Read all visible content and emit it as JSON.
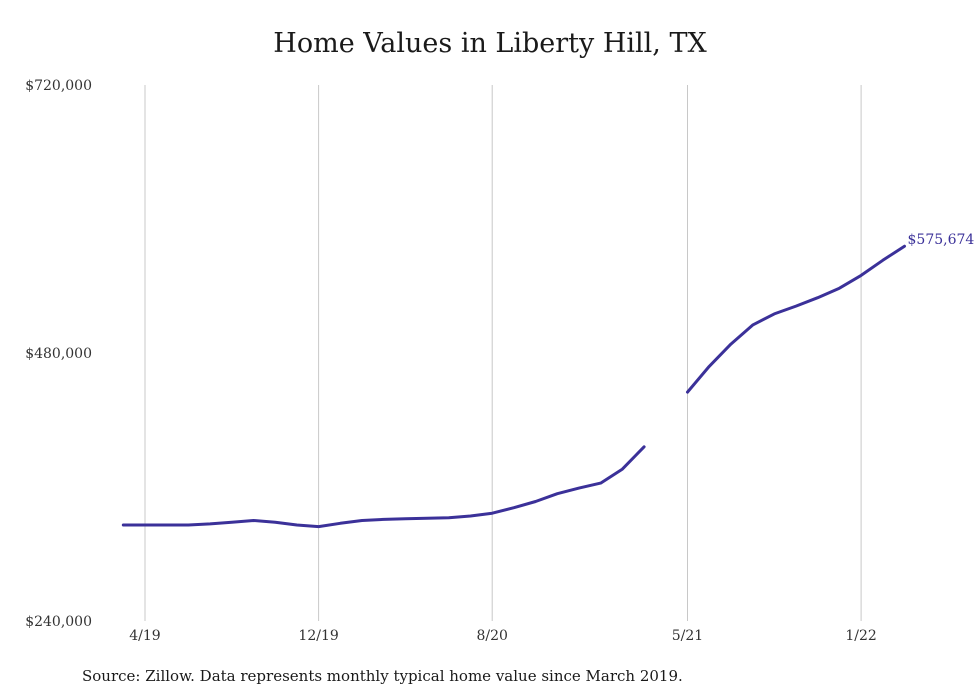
{
  "chart_data": {
    "type": "line",
    "title": "Home Values in Liberty Hill, TX",
    "xlabel": "",
    "ylabel": "",
    "source": "Source: Zillow. Data represents monthly typical home value since March 2019.",
    "ylim": [
      240000,
      720000
    ],
    "y_ticks": [
      240000,
      480000,
      720000
    ],
    "y_tick_labels": [
      "$240,000",
      "$480,000",
      "$720,000"
    ],
    "x_ticks": [
      "2019-04",
      "2019-12",
      "2020-08",
      "2021-05",
      "2022-01"
    ],
    "x_tick_labels": [
      "4/19",
      "12/19",
      "8/20",
      "5/21",
      "1/22"
    ],
    "grid": "vertical",
    "line_color": "#3b3199",
    "end_label": "$575,674",
    "series": [
      {
        "segments": [
          [
            {
              "x": "2019-03",
              "y": 326000
            },
            {
              "x": "2019-04",
              "y": 326000
            },
            {
              "x": "2019-05",
              "y": 326000
            },
            {
              "x": "2019-06",
              "y": 326000
            },
            {
              "x": "2019-07",
              "y": 327000
            },
            {
              "x": "2019-08",
              "y": 328500
            },
            {
              "x": "2019-09",
              "y": 330000
            },
            {
              "x": "2019-10",
              "y": 328500
            },
            {
              "x": "2019-11",
              "y": 326000
            },
            {
              "x": "2019-12",
              "y": 324500
            },
            {
              "x": "2020-01",
              "y": 327500
            },
            {
              "x": "2020-02",
              "y": 330000
            },
            {
              "x": "2020-03",
              "y": 331000
            },
            {
              "x": "2020-04",
              "y": 331500
            },
            {
              "x": "2020-05",
              "y": 332000
            },
            {
              "x": "2020-06",
              "y": 332500
            },
            {
              "x": "2020-07",
              "y": 334000
            },
            {
              "x": "2020-08",
              "y": 336500
            },
            {
              "x": "2020-09",
              "y": 341500
            },
            {
              "x": "2020-10",
              "y": 347000
            },
            {
              "x": "2020-11",
              "y": 354000
            },
            {
              "x": "2020-12",
              "y": 359000
            },
            {
              "x": "2021-01",
              "y": 363500
            },
            {
              "x": "2021-02",
              "y": 376000
            },
            {
              "x": "2021-03",
              "y": 396000
            }
          ],
          [
            {
              "x": "2021-05",
              "y": 445000
            },
            {
              "x": "2021-06",
              "y": 468000
            },
            {
              "x": "2021-07",
              "y": 488000
            },
            {
              "x": "2021-08",
              "y": 505000
            },
            {
              "x": "2021-09",
              "y": 515000
            },
            {
              "x": "2021-10",
              "y": 522000
            },
            {
              "x": "2021-11",
              "y": 529500
            },
            {
              "x": "2021-12",
              "y": 538000
            },
            {
              "x": "2022-01",
              "y": 549500
            },
            {
              "x": "2022-02",
              "y": 563000
            },
            {
              "x": "2022-03",
              "y": 575674
            }
          ]
        ]
      }
    ]
  }
}
